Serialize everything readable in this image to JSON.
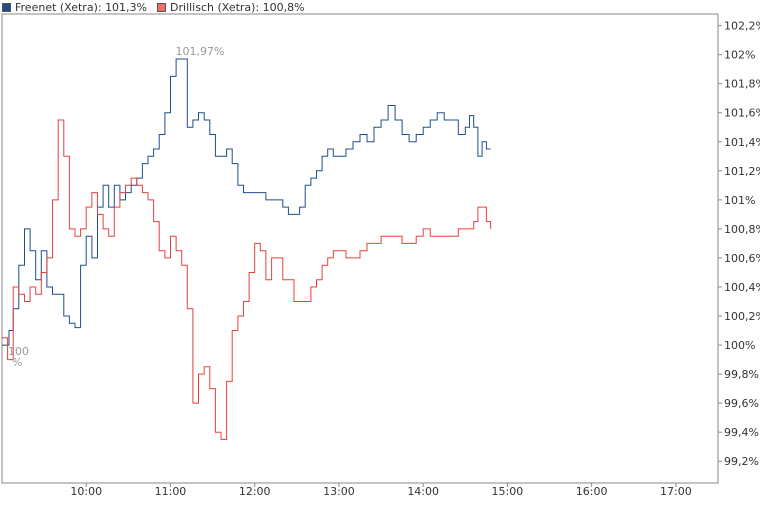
{
  "chart_data": {
    "type": "line",
    "title": "",
    "xlabel": "",
    "ylabel": "",
    "x_ticks": [
      "10:00",
      "11:00",
      "12:00",
      "13:00",
      "14:00",
      "15:00",
      "16:00",
      "17:00"
    ],
    "y_ticks": [
      "99,2%",
      "99,4%",
      "99,6%",
      "99,8%",
      "100%",
      "100,2%",
      "100,4%",
      "100,6%",
      "100,8%",
      "101%",
      "101,2%",
      "101,4%",
      "101,6%",
      "101,8%",
      "102%",
      "102,2%"
    ],
    "xlim": [
      "09:00",
      "17:30"
    ],
    "ylim": [
      99.05,
      102.28
    ],
    "grid": false,
    "legend_position": "top-left",
    "series": [
      {
        "name": "Freenet (Xetra)",
        "legend_label": "Freenet (Xetra): 101,3%",
        "color": "#1f4e8c",
        "swatch": "#244a8a",
        "x": [
          "09:00",
          "09:05",
          "09:08",
          "09:12",
          "09:16",
          "09:20",
          "09:24",
          "09:28",
          "09:32",
          "09:36",
          "09:40",
          "09:44",
          "09:48",
          "09:52",
          "09:56",
          "10:00",
          "10:04",
          "10:08",
          "10:12",
          "10:16",
          "10:20",
          "10:24",
          "10:28",
          "10:32",
          "10:36",
          "10:40",
          "10:44",
          "10:48",
          "10:52",
          "10:56",
          "11:00",
          "11:04",
          "11:08",
          "11:12",
          "11:16",
          "11:20",
          "11:24",
          "11:28",
          "11:32",
          "11:36",
          "11:40",
          "11:44",
          "11:48",
          "11:52",
          "11:56",
          "12:00",
          "12:04",
          "12:08",
          "12:12",
          "12:16",
          "12:20",
          "12:24",
          "12:28",
          "12:32",
          "12:36",
          "12:40",
          "12:44",
          "12:48",
          "12:52",
          "12:56",
          "13:00",
          "13:05",
          "13:10",
          "13:15",
          "13:20",
          "13:25",
          "13:30",
          "13:35",
          "13:40",
          "13:45",
          "13:50",
          "13:55",
          "14:00",
          "14:05",
          "14:10",
          "14:15",
          "14:20",
          "14:25",
          "14:30",
          "14:33",
          "14:36",
          "14:39",
          "14:42",
          "14:45",
          "14:48"
        ],
        "values": [
          100.0,
          100.1,
          100.25,
          100.55,
          100.8,
          100.65,
          100.45,
          100.65,
          100.4,
          100.35,
          100.35,
          100.2,
          100.15,
          100.12,
          100.55,
          100.75,
          100.6,
          100.95,
          101.1,
          100.95,
          101.1,
          101.0,
          101.05,
          101.1,
          101.15,
          101.25,
          101.3,
          101.35,
          101.45,
          101.6,
          101.85,
          101.97,
          101.97,
          101.5,
          101.55,
          101.6,
          101.55,
          101.45,
          101.3,
          101.3,
          101.35,
          101.25,
          101.1,
          101.05,
          101.05,
          101.05,
          101.05,
          101.0,
          101.0,
          101.0,
          100.95,
          100.9,
          100.9,
          100.95,
          101.1,
          101.15,
          101.2,
          101.3,
          101.35,
          101.3,
          101.3,
          101.35,
          101.4,
          101.45,
          101.4,
          101.5,
          101.55,
          101.65,
          101.55,
          101.45,
          101.4,
          101.45,
          101.5,
          101.55,
          101.6,
          101.55,
          101.55,
          101.45,
          101.5,
          101.58,
          101.5,
          101.3,
          101.4,
          101.35,
          101.35
        ]
      },
      {
        "name": "Drillisch (Xetra)",
        "legend_label": "Drillisch (Xetra): 100,8%",
        "color": "#e8403c",
        "swatch": "#f26b6b",
        "x": [
          "09:00",
          "09:04",
          "09:08",
          "09:12",
          "09:16",
          "09:20",
          "09:24",
          "09:28",
          "09:32",
          "09:36",
          "09:40",
          "09:44",
          "09:48",
          "09:52",
          "09:56",
          "10:00",
          "10:04",
          "10:08",
          "10:12",
          "10:16",
          "10:20",
          "10:24",
          "10:28",
          "10:32",
          "10:36",
          "10:40",
          "10:44",
          "10:48",
          "10:52",
          "10:56",
          "11:00",
          "11:04",
          "11:08",
          "11:12",
          "11:16",
          "11:20",
          "11:24",
          "11:28",
          "11:32",
          "11:36",
          "11:40",
          "11:44",
          "11:48",
          "11:52",
          "11:56",
          "12:00",
          "12:04",
          "12:08",
          "12:12",
          "12:16",
          "12:20",
          "12:24",
          "12:28",
          "12:32",
          "12:36",
          "12:40",
          "12:44",
          "12:48",
          "12:52",
          "12:56",
          "13:00",
          "13:05",
          "13:10",
          "13:15",
          "13:20",
          "13:25",
          "13:30",
          "13:35",
          "13:40",
          "13:45",
          "13:50",
          "13:55",
          "14:00",
          "14:05",
          "14:10",
          "14:15",
          "14:20",
          "14:25",
          "14:30",
          "14:33",
          "14:36",
          "14:39",
          "14:42",
          "14:45",
          "14:48"
        ],
        "values": [
          100.05,
          99.9,
          100.4,
          100.35,
          100.3,
          100.4,
          100.35,
          100.5,
          100.6,
          101.0,
          101.55,
          101.3,
          100.8,
          100.75,
          100.8,
          100.95,
          101.05,
          100.9,
          100.8,
          100.75,
          100.95,
          101.05,
          101.1,
          101.15,
          101.1,
          101.05,
          101.0,
          100.85,
          100.65,
          100.6,
          100.75,
          100.65,
          100.55,
          100.25,
          99.6,
          99.8,
          99.85,
          99.7,
          99.4,
          99.35,
          99.75,
          100.1,
          100.2,
          100.3,
          100.5,
          100.7,
          100.65,
          100.45,
          100.6,
          100.6,
          100.45,
          100.45,
          100.3,
          100.3,
          100.3,
          100.4,
          100.45,
          100.55,
          100.6,
          100.65,
          100.65,
          100.6,
          100.6,
          100.65,
          100.7,
          100.7,
          100.75,
          100.75,
          100.75,
          100.7,
          100.7,
          100.75,
          100.8,
          100.75,
          100.75,
          100.75,
          100.75,
          100.8,
          100.8,
          100.8,
          100.85,
          100.95,
          100.95,
          100.85,
          100.8
        ]
      }
    ],
    "annotations": [
      {
        "text": "101,97%",
        "x": "11:21",
        "y": 101.97,
        "color": "#999999"
      },
      {
        "text": "100",
        "x": "09:00",
        "y": 100.0,
        "color": "#999999"
      },
      {
        "text": "%",
        "x": "09:00",
        "y": 100.0,
        "color": "#999999"
      }
    ]
  }
}
